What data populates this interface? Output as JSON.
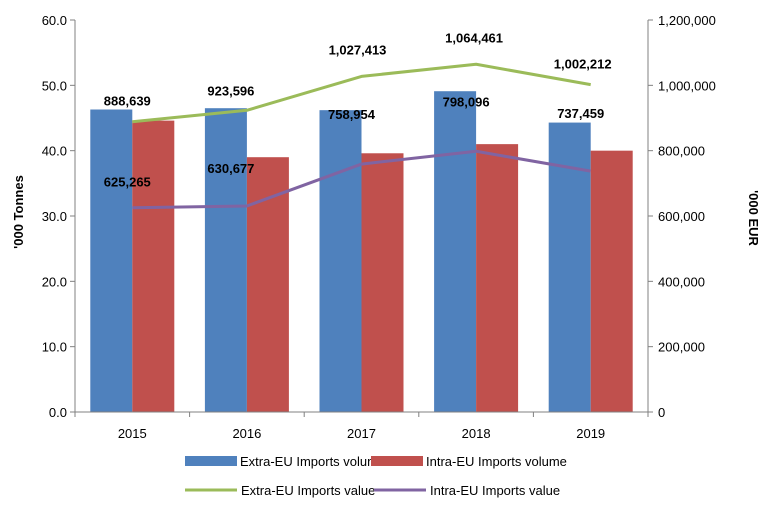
{
  "chart_data": {
    "type": "bar",
    "categories": [
      "2015",
      "2016",
      "2017",
      "2018",
      "2019"
    ],
    "y_left": {
      "label": "'000 Tonnes",
      "min": 0,
      "max": 60,
      "step": 10,
      "ticks": [
        "0.0",
        "10.0",
        "20.0",
        "30.0",
        "40.0",
        "50.0",
        "60.0"
      ]
    },
    "y_right": {
      "label": "'000 EUR",
      "min": 0,
      "max": 1200000,
      "step": 200000,
      "ticks": [
        "0",
        "200,000",
        "400,000",
        "600,000",
        "800,000",
        "1,000,000",
        "1,200,000"
      ]
    },
    "bar_series": [
      {
        "name": "Extra-EU Imports volume",
        "axis": "left",
        "color": "#4F81BD",
        "values": [
          46.3,
          46.5,
          46.2,
          49.1,
          44.3
        ]
      },
      {
        "name": "Intra-EU Imports volume",
        "axis": "left",
        "color": "#C0504D",
        "values": [
          44.6,
          39.0,
          39.6,
          41.0,
          40.0
        ]
      }
    ],
    "line_series": [
      {
        "name": "Extra-EU Imports value",
        "axis": "right",
        "color": "#9BBB59",
        "values": [
          888639,
          923596,
          1027413,
          1064461,
          1002212
        ],
        "labels": [
          "888,639",
          "923,596",
          "1,027,413",
          "1,064,461",
          "1,002,212"
        ]
      },
      {
        "name": "Intra-EU Imports value",
        "axis": "right",
        "color": "#8064A2",
        "values": [
          625265,
          630677,
          758954,
          798096,
          737459
        ],
        "labels": [
          "625,265",
          "630,677",
          "758,954",
          "798,096",
          "737,459"
        ]
      }
    ],
    "legend_position": "bottom",
    "grid": false
  }
}
